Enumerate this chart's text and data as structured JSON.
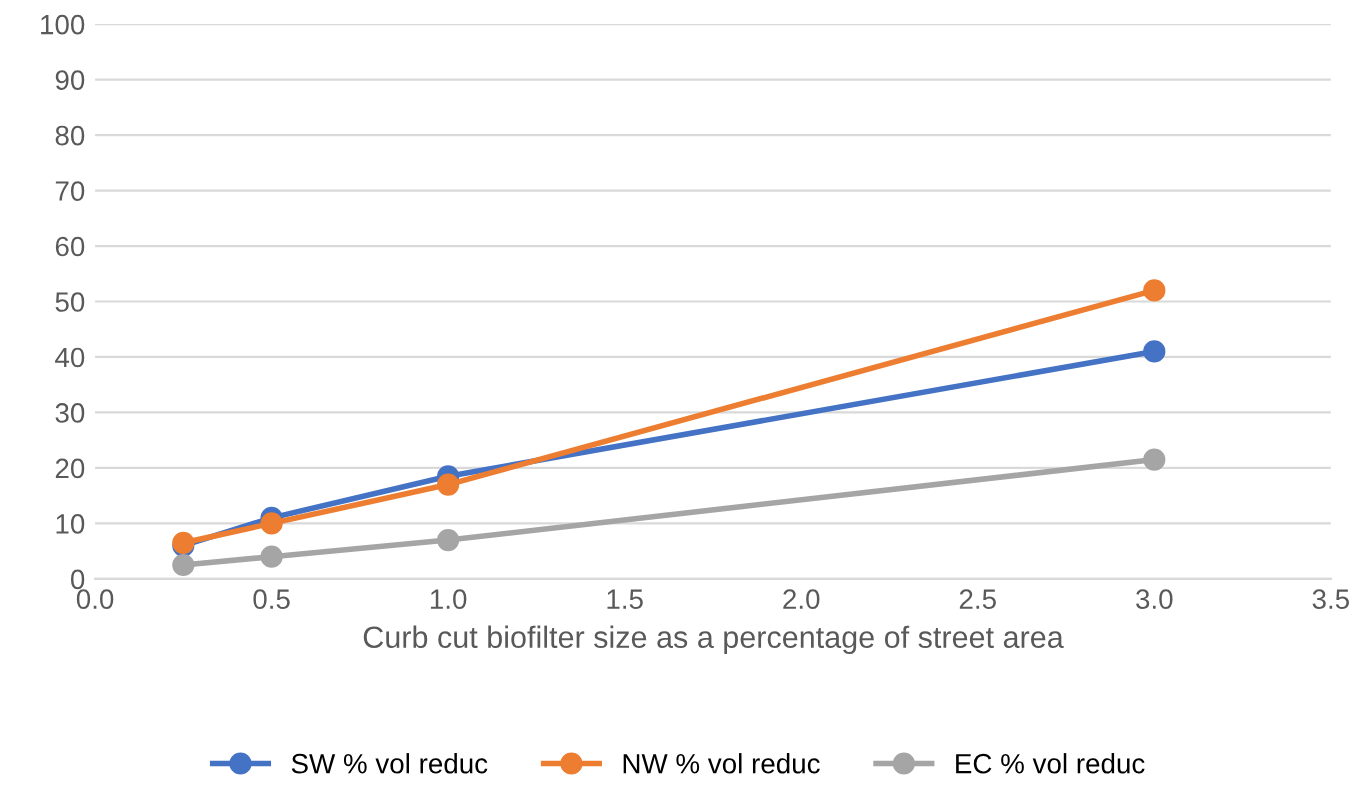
{
  "chart_data": {
    "type": "line",
    "xlabel": "Curb cut biofilter size as a percentage of street area",
    "x": [
      0.25,
      0.5,
      1.0,
      3.0
    ],
    "series": [
      {
        "name": "SW % vol reduc",
        "color": "#4472c4",
        "values": [
          6,
          11,
          18.5,
          41
        ]
      },
      {
        "name": "NW % vol reduc",
        "color": "#ed7d31",
        "values": [
          6.5,
          10,
          17,
          52
        ]
      },
      {
        "name": "EC % vol reduc",
        "color": "#a5a5a5",
        "values": [
          2.5,
          4,
          7,
          21.5
        ]
      }
    ],
    "xlim": [
      0,
      3.5
    ],
    "xticks": [
      {
        "value": 0,
        "label": "0.0"
      },
      {
        "value": 0.5,
        "label": "0.5"
      },
      {
        "value": 1,
        "label": "1.0"
      },
      {
        "value": 1.5,
        "label": "1.5"
      },
      {
        "value": 2,
        "label": "2.0"
      },
      {
        "value": 2.5,
        "label": "2.5"
      },
      {
        "value": 3,
        "label": "3.0"
      },
      {
        "value": 3.5,
        "label": "3.5"
      }
    ],
    "ylim": [
      0,
      100
    ],
    "yticks": [
      0,
      10,
      20,
      30,
      40,
      50,
      60,
      70,
      80,
      90,
      100
    ],
    "grid": "y",
    "legend": "bottom",
    "marker": "circle",
    "line_style": "solid"
  }
}
